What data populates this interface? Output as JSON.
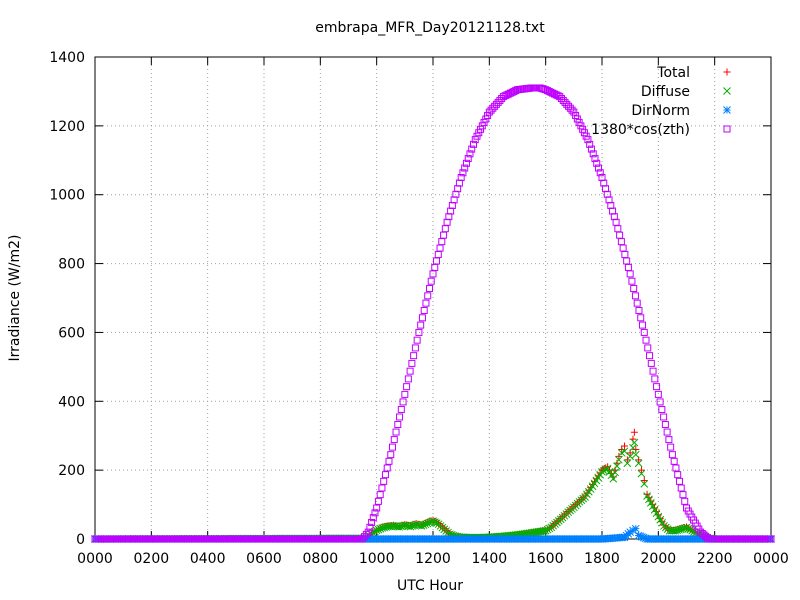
{
  "chart_data": {
    "type": "scatter",
    "title": "embrapa_MFR_Day20121128.txt",
    "xlabel": "UTC Hour",
    "ylabel": "Irradiance (W/m2)",
    "xlim": [
      0,
      2400
    ],
    "ylim": [
      0,
      1400
    ],
    "x_tick_labels": [
      "0000",
      "0200",
      "0400",
      "0600",
      "0800",
      "1000",
      "1200",
      "1400",
      "1600",
      "1800",
      "2000",
      "2200",
      "0000"
    ],
    "y_tick_labels": [
      "0",
      "200",
      "400",
      "600",
      "800",
      "1000",
      "1200",
      "1400"
    ],
    "grid": true,
    "legend_position": "top-right",
    "series": [
      {
        "name": "Total",
        "marker": "plus",
        "color": "#ff0000",
        "x": [
          0,
          960,
          980,
          1000,
          1020,
          1040,
          1060,
          1080,
          1100,
          1120,
          1140,
          1160,
          1180,
          1200,
          1220,
          1240,
          1260,
          1280,
          1300,
          1350,
          1400,
          1450,
          1500,
          1550,
          1600,
          1620,
          1640,
          1660,
          1680,
          1700,
          1720,
          1740,
          1760,
          1780,
          1800,
          1820,
          1840,
          1860,
          1870,
          1880,
          1890,
          1900,
          1910,
          1915,
          1920,
          1930,
          1940,
          1950,
          1960,
          1980,
          2000,
          2020,
          2040,
          2060,
          2080,
          2100,
          2120,
          2140,
          2160,
          2180,
          2200,
          2400
        ],
        "y": [
          0,
          2,
          15,
          25,
          35,
          38,
          40,
          36,
          42,
          38,
          45,
          40,
          48,
          55,
          45,
          30,
          15,
          8,
          5,
          4,
          5,
          8,
          12,
          18,
          25,
          35,
          50,
          65,
          80,
          95,
          110,
          125,
          150,
          175,
          200,
          210,
          180,
          240,
          260,
          270,
          230,
          250,
          290,
          310,
          260,
          230,
          200,
          170,
          130,
          100,
          70,
          40,
          25,
          25,
          30,
          35,
          25,
          15,
          8,
          2,
          0,
          0
        ]
      },
      {
        "name": "Diffuse",
        "marker": "cross",
        "color": "#00b000",
        "x": [
          0,
          960,
          980,
          1000,
          1020,
          1040,
          1060,
          1080,
          1100,
          1120,
          1140,
          1160,
          1180,
          1200,
          1220,
          1240,
          1260,
          1280,
          1300,
          1350,
          1400,
          1450,
          1500,
          1550,
          1600,
          1620,
          1640,
          1660,
          1680,
          1700,
          1720,
          1740,
          1760,
          1780,
          1800,
          1820,
          1840,
          1860,
          1870,
          1880,
          1890,
          1900,
          1910,
          1915,
          1920,
          1930,
          1940,
          1950,
          1960,
          1980,
          2000,
          2020,
          2040,
          2060,
          2080,
          2100,
          2120,
          2140,
          2160,
          2180,
          2200,
          2400
        ],
        "y": [
          0,
          2,
          15,
          25,
          32,
          36,
          38,
          35,
          40,
          36,
          42,
          38,
          45,
          52,
          43,
          28,
          14,
          8,
          5,
          4,
          5,
          8,
          12,
          18,
          24,
          34,
          48,
          62,
          78,
          92,
          108,
          122,
          145,
          170,
          195,
          205,
          175,
          230,
          250,
          255,
          220,
          240,
          265,
          280,
          245,
          220,
          190,
          160,
          125,
          95,
          65,
          38,
          24,
          24,
          28,
          33,
          24,
          14,
          8,
          2,
          0,
          0
        ]
      },
      {
        "name": "DirNorm",
        "marker": "star",
        "color": "#0080ff",
        "x": [
          0,
          300,
          600,
          900,
          1000,
          1200,
          1400,
          1600,
          1800,
          1880,
          1900,
          1910,
          1920,
          1930,
          1960,
          2000,
          2200,
          2400
        ],
        "y": [
          0,
          0,
          0,
          0,
          0,
          0,
          0,
          0,
          0,
          5,
          20,
          25,
          30,
          10,
          0,
          0,
          0,
          0
        ]
      },
      {
        "name": "1380*cos(zth)",
        "marker": "open-square",
        "color": "#c000ff",
        "x": [
          0,
          500,
          950,
          970,
          1000,
          1050,
          1100,
          1150,
          1200,
          1250,
          1300,
          1350,
          1400,
          1450,
          1500,
          1550,
          1580,
          1600,
          1650,
          1700,
          1750,
          1800,
          1850,
          1900,
          1950,
          2000,
          2050,
          2100,
          2150,
          2180,
          2200,
          2400
        ],
        "y": [
          0,
          0,
          0,
          20,
          90,
          245,
          420,
          600,
          770,
          920,
          1050,
          1160,
          1240,
          1285,
          1305,
          1310,
          1310,
          1305,
          1285,
          1240,
          1160,
          1050,
          920,
          770,
          600,
          420,
          245,
          90,
          20,
          0,
          0,
          0
        ]
      }
    ]
  }
}
